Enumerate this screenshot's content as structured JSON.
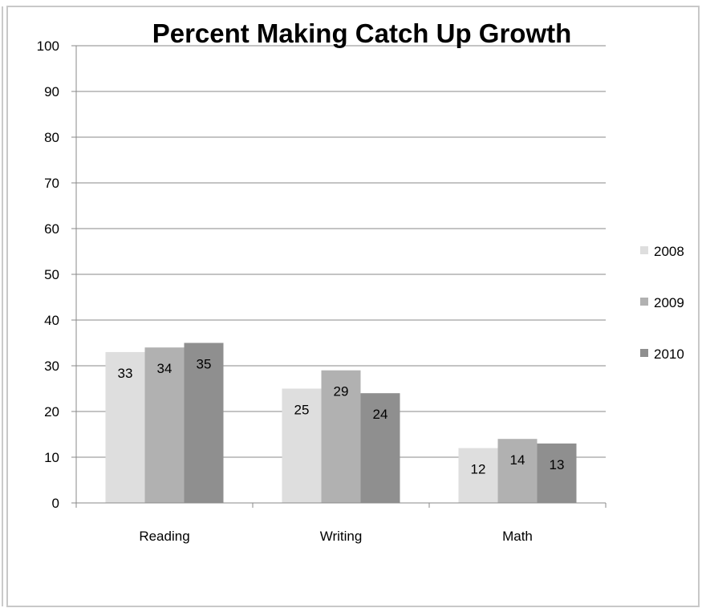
{
  "chart_data": {
    "type": "bar",
    "title": "Percent Making Catch Up Growth",
    "xlabel": "",
    "ylabel": "",
    "categories": [
      "Reading",
      "Writing",
      "Math"
    ],
    "series": [
      {
        "name": "2008",
        "values": [
          33,
          25,
          12
        ],
        "color": "#dedede"
      },
      {
        "name": "2009",
        "values": [
          34,
          29,
          14
        ],
        "color": "#b1b1b1"
      },
      {
        "name": "2010",
        "values": [
          35,
          24,
          13
        ],
        "color": "#8f8f8f"
      }
    ],
    "ylim": [
      0,
      100
    ],
    "yticks": [
      "0",
      "10",
      "20",
      "30",
      "40",
      "50",
      "60",
      "70",
      "80",
      "90",
      "100"
    ],
    "grid": true,
    "legend_position": "right"
  }
}
